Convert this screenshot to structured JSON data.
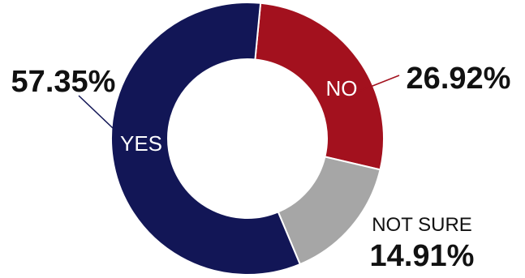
{
  "chart_data": {
    "type": "pie",
    "style": "donut",
    "slices": [
      {
        "label": "YES",
        "value": 57.35,
        "value_label": "57.35%",
        "color": "#121656"
      },
      {
        "label": "NO",
        "value": 26.92,
        "value_label": "26.92%",
        "color": "#A3111E"
      },
      {
        "label": "NOT SURE",
        "value": 14.91,
        "value_label": "14.91%",
        "color": "#A6A6A6"
      }
    ]
  }
}
